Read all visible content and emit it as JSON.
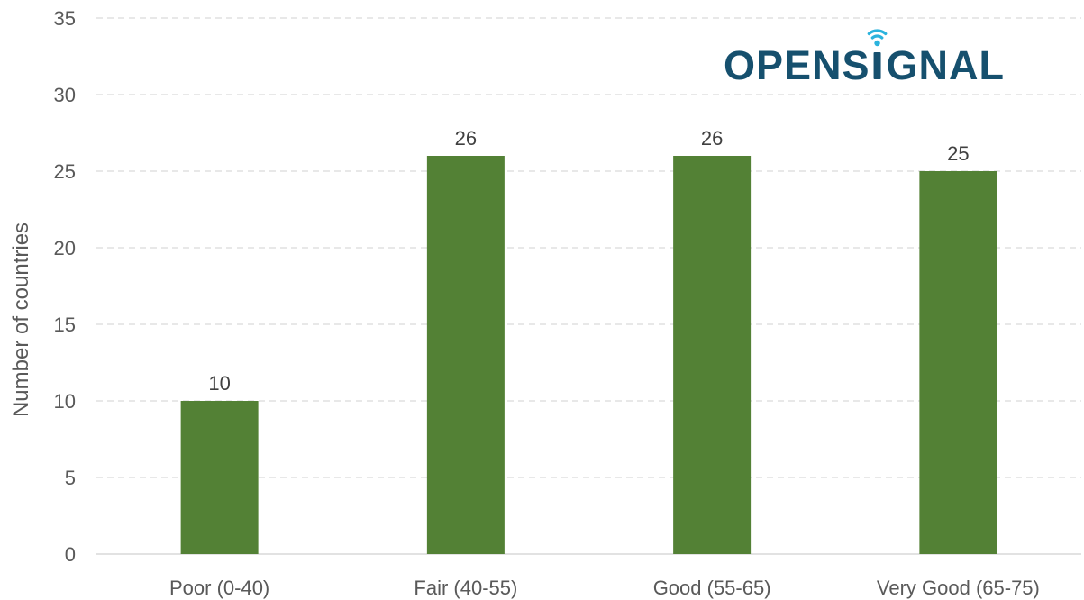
{
  "logo": {
    "text": "OPENSIGNAL",
    "text_color": "#16506e",
    "signal_color": "#2bb3dd"
  },
  "colors": {
    "bar": "#538135",
    "grid": "#d9d9d9",
    "tick_text": "#595959",
    "label_text": "#404040"
  },
  "chart_data": {
    "type": "bar",
    "title": "",
    "xlabel": "",
    "ylabel": "Number of countries",
    "categories": [
      "Poor (0-40)",
      "Fair (40-55)",
      "Good (55-65)",
      "Very Good (65-75)"
    ],
    "values": [
      10,
      26,
      26,
      25
    ],
    "data_labels": [
      "10",
      "26",
      "26",
      "25"
    ],
    "ylim": [
      0,
      35
    ],
    "yticks": [
      0,
      5,
      10,
      15,
      20,
      25,
      30,
      35
    ],
    "grid": true,
    "legend": "none"
  }
}
